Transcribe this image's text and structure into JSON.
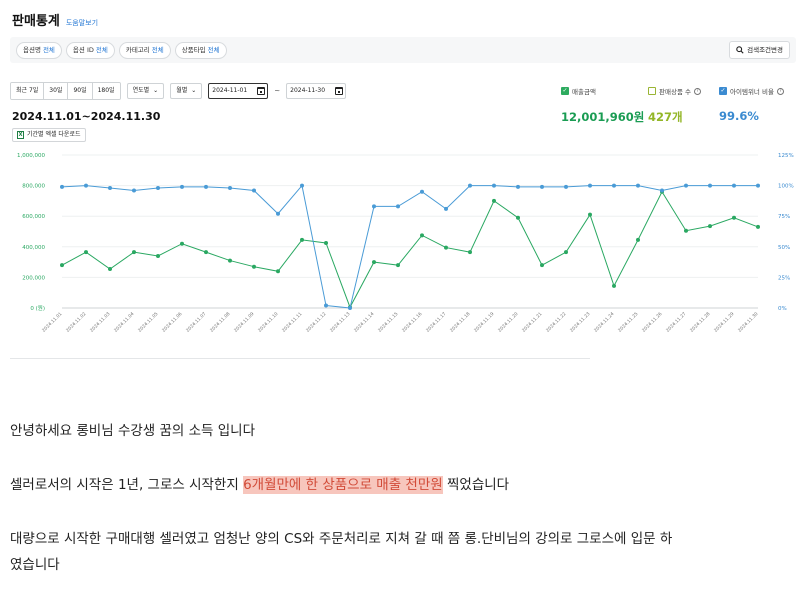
{
  "header": {
    "title": "판매통계",
    "help_label": "도움말보기"
  },
  "filters": {
    "chips": [
      {
        "label": "옵션명",
        "value": "전체"
      },
      {
        "label": "옵션 ID",
        "value": "전체"
      },
      {
        "label": "카테고리",
        "value": "전체"
      },
      {
        "label": "상품타입",
        "value": "전체"
      }
    ],
    "search_button": "검색조건변경"
  },
  "period": {
    "quick": [
      "최근 7일",
      "30일",
      "90일",
      "180일"
    ],
    "selects": [
      "연도별",
      "월별"
    ],
    "start_date": "2024-11-01",
    "end_date": "2024-11-30",
    "separator": "~"
  },
  "range_title": "2024.11.01~2024.11.30",
  "excel_button": "기간별 엑셀 다운로드",
  "metrics": [
    {
      "label": "매출금액",
      "value": "12,001,960원",
      "checked": true,
      "color": "#1a9c53"
    },
    {
      "label": "판매상품 수",
      "value": "427개",
      "checked": false,
      "color": "#93b626"
    },
    {
      "label": "아이템위너 비율",
      "value": "99.6%",
      "checked": true,
      "color": "#3a8ad0"
    }
  ],
  "chart_data": {
    "type": "line",
    "x": [
      "2024.11.01",
      "2024.11.02",
      "2024.11.03",
      "2024.11.04",
      "2024.11.05",
      "2024.11.06",
      "2024.11.07",
      "2024.11.08",
      "2024.11.09",
      "2024.11.10",
      "2024.11.11",
      "2024.11.12",
      "2024.11.13",
      "2024.11.14",
      "2024.11.15",
      "2024.11.16",
      "2024.11.17",
      "2024.11.18",
      "2024.11.19",
      "2024.11.20",
      "2024.11.21",
      "2024.11.22",
      "2024.11.23",
      "2024.11.24",
      "2024.11.25",
      "2024.11.26",
      "2024.11.27",
      "2024.11.28",
      "2024.11.29",
      "2024.11.30"
    ],
    "y_left_ticks": [
      "1,000,000",
      "800,000",
      "600,000",
      "400,000",
      "200,000",
      "0 (원)"
    ],
    "y_right_ticks": [
      "125%",
      "100%",
      "75%",
      "50%",
      "25%",
      "0%"
    ],
    "y_left_range": [
      0,
      1000000
    ],
    "y_right_range": [
      0,
      125
    ],
    "series": [
      {
        "name": "매출금액",
        "axis": "left",
        "color": "#2aa862",
        "values": [
          280000,
          365000,
          255000,
          365000,
          340000,
          420000,
          365000,
          310000,
          270000,
          240000,
          445000,
          425000,
          5000,
          300000,
          280000,
          475000,
          395000,
          365000,
          700000,
          590000,
          280000,
          365000,
          610000,
          145000,
          445000,
          760000,
          505000,
          535000,
          590000,
          530000
        ]
      },
      {
        "name": "아이템위너 비율",
        "axis": "right",
        "color": "#4a9bd6",
        "values": [
          99,
          100,
          98,
          96,
          98,
          99,
          99,
          98,
          96,
          77,
          100,
          2,
          0,
          83,
          83,
          95,
          81,
          100,
          100,
          99,
          99,
          99,
          100,
          100,
          100,
          96,
          100,
          100,
          100,
          100
        ]
      }
    ],
    "grid": true
  },
  "body_text": {
    "line1": "안녕하세요 롱비님 수강생 꿈의 소득 입니다",
    "line2_pre": "셀러로서의 시작은 1년, 그로스 시작한지 ",
    "line2_hl": "6개월만에 한 상품으로 매출 천만원",
    "line2_post": " 찍었습니다",
    "line3": "대량으로 시작한 구매대행 셀러였고 엄청난 양의 CS와 주문처리로 지쳐 갈 때 쯤 롱.단비님의 강의로 그로스에 입문 하",
    "line4": "였습니다"
  }
}
